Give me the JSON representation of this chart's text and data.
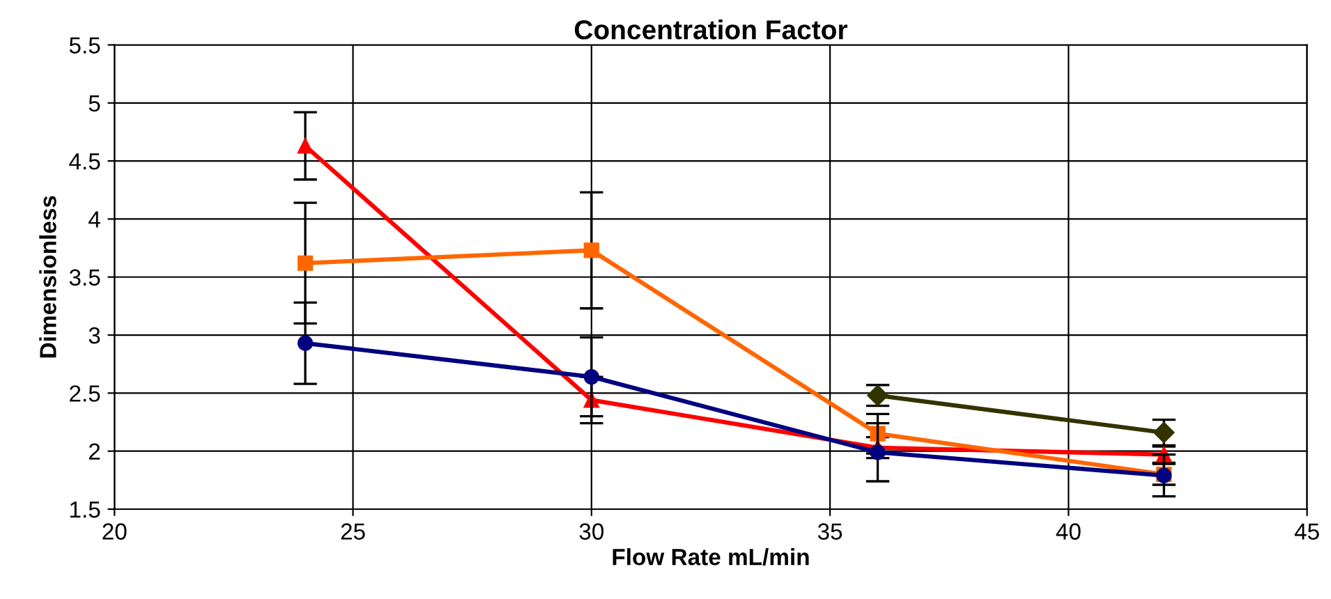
{
  "chart_data": {
    "type": "line",
    "title": "Concentration Factor",
    "xlabel": "Flow Rate mL/min",
    "ylabel": "Dimensionless",
    "xlim": [
      20,
      45
    ],
    "xticks": [
      20,
      25,
      30,
      35,
      40,
      45
    ],
    "ylim": [
      1.5,
      5.5
    ],
    "yticks": [
      1.5,
      2,
      2.5,
      3,
      3.5,
      4,
      4.5,
      5,
      5.5
    ],
    "grid": true,
    "legend": false,
    "line_style": "solid",
    "series": [
      {
        "color": "#000080",
        "marker": "circle",
        "x": [
          24,
          30,
          36,
          42
        ],
        "values": [
          2.93,
          2.64,
          1.99,
          1.79
        ],
        "errors": [
          0.35,
          0.34,
          0.25,
          0.18
        ]
      },
      {
        "color": "#ff6600",
        "marker": "square",
        "x": [
          24,
          30,
          36,
          42
        ],
        "values": [
          3.62,
          3.73,
          2.15,
          1.8
        ],
        "errors": [
          0.52,
          0.5,
          0.17,
          0.09
        ]
      },
      {
        "color": "#ff0000",
        "marker": "triangle",
        "x": [
          24,
          30,
          36,
          42
        ],
        "values": [
          4.63,
          2.44,
          2.03,
          1.97
        ],
        "errors": [
          0.29,
          0.2,
          0.09,
          0.07
        ]
      },
      {
        "color": "#333300",
        "marker": "diamond",
        "x": [
          36,
          42
        ],
        "values": [
          2.48,
          2.16
        ],
        "errors": [
          0.09,
          0.11
        ]
      }
    ]
  }
}
